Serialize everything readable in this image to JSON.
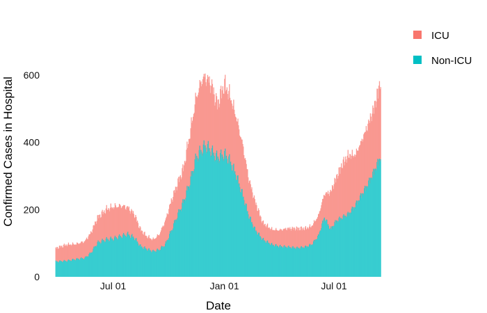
{
  "chart_data": {
    "type": "area",
    "stacked": true,
    "title": "",
    "xlabel": "Date",
    "ylabel": "Confirmed Cases in Hospital",
    "x_range": [
      "2020-03-28",
      "2021-09-16"
    ],
    "ylim": [
      0,
      600
    ],
    "y_ticks": [
      0,
      200,
      400,
      600
    ],
    "x_ticks": [
      {
        "date": "2020-07-01",
        "label": "Jul 01"
      },
      {
        "date": "2021-01-01",
        "label": "Jan 01"
      },
      {
        "date": "2021-07-01",
        "label": "Jul 01"
      }
    ],
    "grid": false,
    "legend_position": "right",
    "colors": {
      "ICU": "#F8766D",
      "Non-ICU": "#00BFC4"
    },
    "legend": [
      "ICU",
      "Non-ICU"
    ],
    "series": [
      {
        "name": "Non-ICU",
        "points": [
          [
            "2020-03-28",
            45
          ],
          [
            "2020-04-15",
            47
          ],
          [
            "2020-05-01",
            52
          ],
          [
            "2020-05-15",
            55
          ],
          [
            "2020-05-25",
            70
          ],
          [
            "2020-06-05",
            100
          ],
          [
            "2020-06-20",
            110
          ],
          [
            "2020-07-01",
            112
          ],
          [
            "2020-07-15",
            120
          ],
          [
            "2020-07-25",
            125
          ],
          [
            "2020-08-05",
            115
          ],
          [
            "2020-08-15",
            90
          ],
          [
            "2020-08-25",
            82
          ],
          [
            "2020-09-05",
            75
          ],
          [
            "2020-09-15",
            80
          ],
          [
            "2020-09-25",
            95
          ],
          [
            "2020-10-05",
            135
          ],
          [
            "2020-10-15",
            180
          ],
          [
            "2020-10-25",
            220
          ],
          [
            "2020-11-05",
            280
          ],
          [
            "2020-11-15",
            350
          ],
          [
            "2020-11-25",
            375
          ],
          [
            "2020-12-01",
            385
          ],
          [
            "2020-12-10",
            370
          ],
          [
            "2020-12-20",
            350
          ],
          [
            "2021-01-01",
            360
          ],
          [
            "2021-01-10",
            340
          ],
          [
            "2021-01-20",
            300
          ],
          [
            "2021-01-31",
            240
          ],
          [
            "2021-02-10",
            180
          ],
          [
            "2021-02-20",
            140
          ],
          [
            "2021-03-05",
            110
          ],
          [
            "2021-03-20",
            95
          ],
          [
            "2021-04-01",
            90
          ],
          [
            "2021-04-15",
            88
          ],
          [
            "2021-05-01",
            85
          ],
          [
            "2021-05-15",
            88
          ],
          [
            "2021-05-25",
            95
          ],
          [
            "2021-06-05",
            120
          ],
          [
            "2021-06-15",
            175
          ],
          [
            "2021-06-25",
            140
          ],
          [
            "2021-07-05",
            165
          ],
          [
            "2021-07-15",
            175
          ],
          [
            "2021-07-25",
            185
          ],
          [
            "2021-08-05",
            210
          ],
          [
            "2021-08-15",
            240
          ],
          [
            "2021-08-25",
            270
          ],
          [
            "2021-09-05",
            310
          ],
          [
            "2021-09-16",
            355
          ]
        ]
      },
      {
        "name": "ICU",
        "points": [
          [
            "2020-03-28",
            40
          ],
          [
            "2020-04-15",
            48
          ],
          [
            "2020-05-01",
            45
          ],
          [
            "2020-05-15",
            50
          ],
          [
            "2020-05-25",
            60
          ],
          [
            "2020-06-05",
            75
          ],
          [
            "2020-06-20",
            90
          ],
          [
            "2020-07-01",
            95
          ],
          [
            "2020-07-15",
            90
          ],
          [
            "2020-07-25",
            80
          ],
          [
            "2020-08-05",
            70
          ],
          [
            "2020-08-15",
            50
          ],
          [
            "2020-08-25",
            38
          ],
          [
            "2020-09-05",
            35
          ],
          [
            "2020-09-15",
            45
          ],
          [
            "2020-09-25",
            70
          ],
          [
            "2020-10-05",
            90
          ],
          [
            "2020-10-15",
            95
          ],
          [
            "2020-10-25",
            100
          ],
          [
            "2020-11-05",
            145
          ],
          [
            "2020-11-15",
            180
          ],
          [
            "2020-11-25",
            210
          ],
          [
            "2020-12-01",
            205
          ],
          [
            "2020-12-10",
            200
          ],
          [
            "2020-12-20",
            160
          ],
          [
            "2021-01-01",
            210
          ],
          [
            "2021-01-10",
            195
          ],
          [
            "2021-01-20",
            175
          ],
          [
            "2021-01-31",
            150
          ],
          [
            "2021-02-10",
            110
          ],
          [
            "2021-02-20",
            85
          ],
          [
            "2021-03-05",
            50
          ],
          [
            "2021-03-20",
            45
          ],
          [
            "2021-04-01",
            48
          ],
          [
            "2021-04-15",
            55
          ],
          [
            "2021-05-01",
            58
          ],
          [
            "2021-05-15",
            55
          ],
          [
            "2021-05-25",
            55
          ],
          [
            "2021-06-05",
            60
          ],
          [
            "2021-06-15",
            70
          ],
          [
            "2021-06-25",
            110
          ],
          [
            "2021-07-05",
            130
          ],
          [
            "2021-07-15",
            160
          ],
          [
            "2021-07-25",
            175
          ],
          [
            "2021-08-05",
            150
          ],
          [
            "2021-08-15",
            160
          ],
          [
            "2021-08-25",
            175
          ],
          [
            "2021-09-05",
            190
          ],
          [
            "2021-09-16",
            225
          ]
        ]
      }
    ]
  }
}
